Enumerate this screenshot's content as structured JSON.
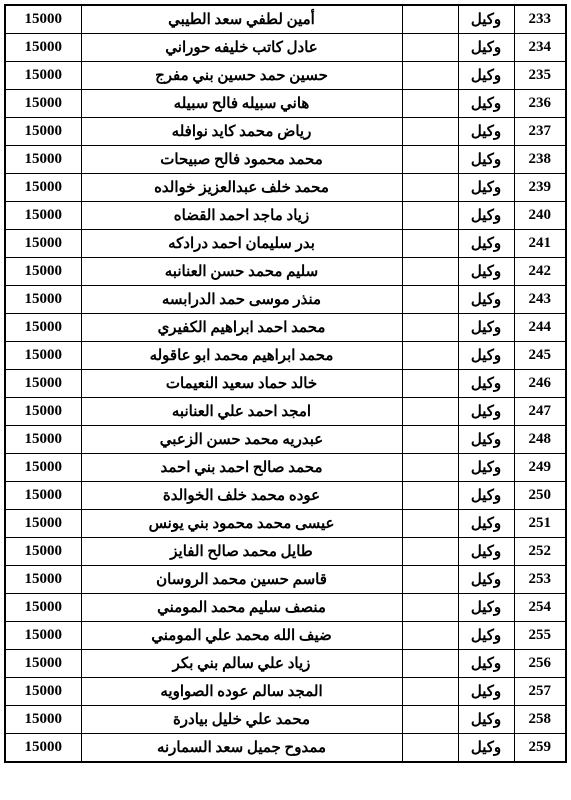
{
  "table": {
    "amount_value": "15000",
    "rows": [
      {
        "num": "233",
        "role": "وكيل",
        "name": "أمين لطفي سعد الطيبي"
      },
      {
        "num": "234",
        "role": "وكيل",
        "name": "عادل كاتب خليفه حوراني"
      },
      {
        "num": "235",
        "role": "وكيل",
        "name": "حسين حمد حسين بني مفرج"
      },
      {
        "num": "236",
        "role": "وكيل",
        "name": "هاني سبيله فالح سبيله"
      },
      {
        "num": "237",
        "role": "وكيل",
        "name": "رياض محمد كايد نوافله"
      },
      {
        "num": "238",
        "role": "وكيل",
        "name": "محمد محمود فالح صبيحات"
      },
      {
        "num": "239",
        "role": "وكيل",
        "name": "محمد خلف عبدالعزيز خوالده"
      },
      {
        "num": "240",
        "role": "وكيل",
        "name": "زياد ماجد احمد القضاه"
      },
      {
        "num": "241",
        "role": "وكيل",
        "name": "بدر سليمان احمد درادكه"
      },
      {
        "num": "242",
        "role": "وكيل",
        "name": "سليم محمد حسن العنانبه"
      },
      {
        "num": "243",
        "role": "وكيل",
        "name": "منذر موسى حمد الدرابسه"
      },
      {
        "num": "244",
        "role": "وكيل",
        "name": "محمد احمد ابراهيم الكفيري"
      },
      {
        "num": "245",
        "role": "وكيل",
        "name": "محمد ابراهيم محمد ابو عاقوله"
      },
      {
        "num": "246",
        "role": "وكيل",
        "name": "خالد حماد سعيد النعيمات"
      },
      {
        "num": "247",
        "role": "وكيل",
        "name": "امجد احمد علي العنانبه"
      },
      {
        "num": "248",
        "role": "وكيل",
        "name": "عبدريه محمد حسن الزعبي"
      },
      {
        "num": "249",
        "role": "وكيل",
        "name": "محمد صالح احمد بني احمد"
      },
      {
        "num": "250",
        "role": "وكيل",
        "name": "عوده محمد خلف الخوالدة"
      },
      {
        "num": "251",
        "role": "وكيل",
        "name": "عيسى محمد محمود بني يونس"
      },
      {
        "num": "252",
        "role": "وكيل",
        "name": "طايل محمد صالح الفايز"
      },
      {
        "num": "253",
        "role": "وكيل",
        "name": "قاسم حسين محمد الروسان"
      },
      {
        "num": "254",
        "role": "وكيل",
        "name": "منصف سليم محمد المومني"
      },
      {
        "num": "255",
        "role": "وكيل",
        "name": "ضيف الله محمد علي المومني"
      },
      {
        "num": "256",
        "role": "وكيل",
        "name": "زياد علي سالم بني بكر"
      },
      {
        "num": "257",
        "role": "وكيل",
        "name": "المجد سالم عوده الصواويه"
      },
      {
        "num": "258",
        "role": "وكيل",
        "name": "محمد علي خليل بيادرة"
      },
      {
        "num": "259",
        "role": "وكيل",
        "name": "ممدوح جميل سعد السمارنه"
      }
    ]
  }
}
